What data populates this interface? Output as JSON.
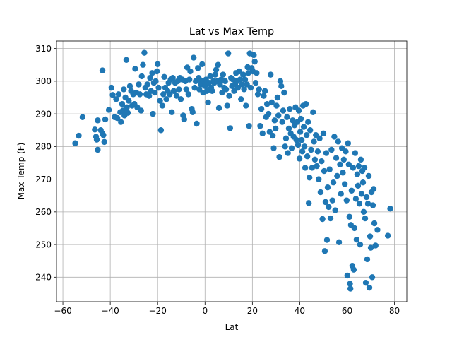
{
  "chart_data": {
    "type": "scatter",
    "title": "Lat vs Max Temp",
    "xlabel": "Lat",
    "ylabel": "Max Temp (F)",
    "xlim": [
      -62.7,
      85.2
    ],
    "ylim": [
      232.5,
      312.3
    ],
    "xticks": [
      -60,
      -40,
      -20,
      0,
      20,
      40,
      60,
      80
    ],
    "yticks": [
      240,
      250,
      260,
      270,
      280,
      290,
      300,
      310
    ],
    "grid": true,
    "marker_color": "#1f77b4",
    "points": [
      [
        -54.8,
        281
      ],
      [
        -53.3,
        283.3
      ],
      [
        -51.7,
        289
      ],
      [
        -46.5,
        285.2
      ],
      [
        -46,
        283
      ],
      [
        -45.7,
        282.1
      ],
      [
        -45.3,
        279
      ],
      [
        -45.3,
        288
      ],
      [
        -44,
        285
      ],
      [
        -43.3,
        284
      ],
      [
        -43.3,
        303.3
      ],
      [
        -42.9,
        283.5
      ],
      [
        -42.5,
        281.4
      ],
      [
        -42.1,
        288.3
      ],
      [
        -40.6,
        291.2
      ],
      [
        -39.5,
        298
      ],
      [
        -39,
        295.8
      ],
      [
        -38.2,
        289
      ],
      [
        -37.5,
        294.5
      ],
      [
        -37,
        288.7
      ],
      [
        -36.5,
        296
      ],
      [
        -35.8,
        290.5
      ],
      [
        -35.5,
        287.5
      ],
      [
        -35,
        293
      ],
      [
        -34.7,
        291
      ],
      [
        -34.3,
        297.5
      ],
      [
        -34,
        289.5
      ],
      [
        -33.6,
        295
      ],
      [
        -33.2,
        306.5
      ],
      [
        -33,
        292
      ],
      [
        -32.6,
        290.3
      ],
      [
        -32.2,
        294
      ],
      [
        -31.7,
        298.5
      ],
      [
        -31.2,
        297
      ],
      [
        -30.8,
        292.5
      ],
      [
        -30.3,
        296
      ],
      [
        -29.8,
        293
      ],
      [
        -29.5,
        303.8
      ],
      [
        -29,
        296.5
      ],
      [
        -28.6,
        292
      ],
      [
        -28,
        299
      ],
      [
        -27.5,
        296
      ],
      [
        -27,
        291
      ],
      [
        -26.7,
        301.5
      ],
      [
        -26.2,
        305
      ],
      [
        -25.6,
        308.7
      ],
      [
        -25.2,
        298
      ],
      [
        -24.8,
        296
      ],
      [
        -24.3,
        299
      ],
      [
        -23.6,
        295.5
      ],
      [
        -23.2,
        301
      ],
      [
        -22.8,
        297
      ],
      [
        -22.3,
        302.5
      ],
      [
        -22,
        290
      ],
      [
        -21.6,
        299.5
      ],
      [
        -21.2,
        296.5
      ],
      [
        -20.8,
        300
      ],
      [
        -20.3,
        303
      ],
      [
        -20,
        305.2
      ],
      [
        -19.6,
        298
      ],
      [
        -19,
        294
      ],
      [
        -18.6,
        285
      ],
      [
        -18,
        292.5
      ],
      [
        -17.6,
        296
      ],
      [
        -17.2,
        301.3
      ],
      [
        -16.8,
        298
      ],
      [
        -16.3,
        294.5
      ],
      [
        -15.8,
        297
      ],
      [
        -15.4,
        299.5
      ],
      [
        -14.9,
        296
      ],
      [
        -14.5,
        300.5
      ],
      [
        -14,
        290.5
      ],
      [
        -13.6,
        301
      ],
      [
        -13.2,
        297
      ],
      [
        -12.6,
        299.5
      ],
      [
        -12,
        295.5
      ],
      [
        -11.5,
        300
      ],
      [
        -11,
        297.5
      ],
      [
        -10.6,
        301
      ],
      [
        -10.2,
        294.5
      ],
      [
        -9.6,
        300.5
      ],
      [
        -9.2,
        289.5
      ],
      [
        -8.8,
        288.3
      ],
      [
        -8.3,
        300
      ],
      [
        -7.9,
        297.5
      ],
      [
        -7.5,
        304.2
      ],
      [
        -7,
        296
      ],
      [
        -6.6,
        300.5
      ],
      [
        -6.2,
        303
      ],
      [
        -5.6,
        291.5
      ],
      [
        -5.2,
        290.5
      ],
      [
        -4.8,
        307.2
      ],
      [
        -4.4,
        298
      ],
      [
        -3.9,
        300
      ],
      [
        -3.5,
        287
      ],
      [
        -3,
        304
      ],
      [
        -2.7,
        301
      ],
      [
        -2.4,
        297.5
      ],
      [
        -2,
        300.3
      ],
      [
        -1.6,
        299
      ],
      [
        -1.2,
        305.2
      ],
      [
        -0.8,
        296.5
      ],
      [
        -0.4,
        300
      ],
      [
        0,
        298.5
      ],
      [
        0.4,
        300.5
      ],
      [
        0.8,
        297
      ],
      [
        1.3,
        293.5
      ],
      [
        1.7,
        299.5
      ],
      [
        2.2,
        301.5
      ],
      [
        2.6,
        298
      ],
      [
        3,
        297
      ],
      [
        3.5,
        300
      ],
      [
        3.9,
        299.5
      ],
      [
        4.3,
        302
      ],
      [
        4.7,
        303.5
      ],
      [
        5.1,
        300
      ],
      [
        5.5,
        305
      ],
      [
        5.9,
        291.8
      ],
      [
        6.3,
        299
      ],
      [
        6.8,
        300.5
      ],
      [
        7.2,
        296.5
      ],
      [
        7.6,
        302
      ],
      [
        8.1,
        298
      ],
      [
        8.5,
        300
      ],
      [
        8.9,
        297.5
      ],
      [
        9.4,
        292.5
      ],
      [
        9.8,
        308.5
      ],
      [
        10.2,
        295.5
      ],
      [
        10.6,
        285.6
      ],
      [
        11,
        301
      ],
      [
        11.4,
        298.5
      ],
      [
        11.8,
        300.5
      ],
      [
        12.3,
        297
      ],
      [
        12.7,
        299
      ],
      [
        13.1,
        302.5
      ],
      [
        13.5,
        300
      ],
      [
        13.9,
        298
      ],
      [
        14.4,
        303
      ],
      [
        14.8,
        300.5
      ],
      [
        15.2,
        294.5
      ],
      [
        15.6,
        299
      ],
      [
        16.1,
        302
      ],
      [
        16.5,
        297.5
      ],
      [
        16.9,
        300.5
      ],
      [
        17.3,
        292.5
      ],
      [
        17.7,
        299
      ],
      [
        18,
        304.3
      ],
      [
        18.3,
        302.5
      ],
      [
        18.6,
        286.3
      ],
      [
        18.9,
        308.5
      ],
      [
        19.3,
        298
      ],
      [
        19.7,
        304
      ],
      [
        20.2,
        303
      ],
      [
        20.6,
        308
      ],
      [
        21,
        306
      ],
      [
        21.4,
        299.5
      ],
      [
        21.8,
        302.5
      ],
      [
        22.3,
        296
      ],
      [
        22.8,
        297.5
      ],
      [
        23.3,
        286.3
      ],
      [
        23.8,
        291.5
      ],
      [
        24.3,
        284
      ],
      [
        24.8,
        295.5
      ],
      [
        25.3,
        297
      ],
      [
        25.8,
        289
      ],
      [
        26.2,
        293
      ],
      [
        26.8,
        290
      ],
      [
        27.3,
        284.5
      ],
      [
        27.7,
        302
      ],
      [
        28.2,
        293.5
      ],
      [
        28.6,
        283.3
      ],
      [
        29,
        279.5
      ],
      [
        29.4,
        288
      ],
      [
        29.8,
        285.5
      ],
      [
        30.2,
        292.5
      ],
      [
        30.6,
        295
      ],
      [
        31,
        289.5
      ],
      [
        31.4,
        276.8
      ],
      [
        31.8,
        300
      ],
      [
        32.2,
        298.5
      ],
      [
        32.6,
        287.5
      ],
      [
        33,
        291
      ],
      [
        33.4,
        296.5
      ],
      [
        33.8,
        280
      ],
      [
        34.2,
        282.5
      ],
      [
        34.6,
        289
      ],
      [
        35,
        278
      ],
      [
        35.4,
        285.5
      ],
      [
        35.8,
        291.5
      ],
      [
        36.2,
        284
      ],
      [
        36.6,
        279.5
      ],
      [
        37,
        288
      ],
      [
        37.4,
        283
      ],
      [
        37.8,
        286.5
      ],
      [
        38.2,
        292
      ],
      [
        38.6,
        282
      ],
      [
        39,
        287.5
      ],
      [
        39.3,
        280.5
      ],
      [
        39.6,
        291
      ],
      [
        39.9,
        276.3
      ],
      [
        40.2,
        284.5
      ],
      [
        40.5,
        288.5
      ],
      [
        40.8,
        282
      ],
      [
        41.1,
        278.5
      ],
      [
        41.4,
        292.5
      ],
      [
        41.7,
        286
      ],
      [
        42,
        280
      ],
      [
        42.3,
        273.5
      ],
      [
        42.6,
        293
      ],
      [
        42.9,
        283.5
      ],
      [
        43.2,
        277
      ],
      [
        43.5,
        287.5
      ],
      [
        43.8,
        262.7
      ],
      [
        44.1,
        270.5
      ],
      [
        44.4,
        285
      ],
      [
        44.8,
        279
      ],
      [
        45.2,
        273.5
      ],
      [
        45.6,
        290.5
      ],
      [
        46,
        281.5
      ],
      [
        46.4,
        276
      ],
      [
        46.8,
        283.5
      ],
      [
        47.2,
        274
      ],
      [
        47.6,
        278.5
      ],
      [
        48,
        270
      ],
      [
        48.4,
        282.5
      ],
      [
        48.8,
        266
      ],
      [
        49.2,
        275.5
      ],
      [
        49.6,
        257.8
      ],
      [
        50,
        284
      ],
      [
        50.3,
        272.5
      ],
      [
        50.6,
        248
      ],
      [
        50.9,
        263
      ],
      [
        51.2,
        278
      ],
      [
        51.5,
        251.4
      ],
      [
        51.8,
        267.5
      ],
      [
        52.2,
        261.5
      ],
      [
        52.6,
        273
      ],
      [
        53,
        258
      ],
      [
        53.4,
        279
      ],
      [
        53.8,
        263.5
      ],
      [
        54.2,
        269
      ],
      [
        54.6,
        283
      ],
      [
        55,
        260.5
      ],
      [
        55.4,
        276.5
      ],
      [
        55.8,
        271
      ],
      [
        56.2,
        281.5
      ],
      [
        56.6,
        250.7
      ],
      [
        57,
        274.5
      ],
      [
        57.4,
        265.5
      ],
      [
        57.8,
        279.5
      ],
      [
        58.2,
        272
      ],
      [
        58.6,
        276
      ],
      [
        59,
        268.5
      ],
      [
        59.4,
        278.5
      ],
      [
        59.8,
        263.5
      ],
      [
        60.1,
        240.5
      ],
      [
        60.4,
        281
      ],
      [
        60.7,
        274.5
      ],
      [
        61,
        258.5
      ],
      [
        61.2,
        238
      ],
      [
        61.4,
        236.5
      ],
      [
        61.6,
        256
      ],
      [
        61.9,
        266.5
      ],
      [
        62.2,
        243.5
      ],
      [
        62.5,
        273.5
      ],
      [
        62.8,
        242.3
      ],
      [
        63.1,
        255
      ],
      [
        63.4,
        278
      ],
      [
        63.7,
        264
      ],
      [
        64,
        251.5
      ],
      [
        64.3,
        271.5
      ],
      [
        64.6,
        268
      ],
      [
        64.9,
        274
      ],
      [
        65.2,
        262.5
      ],
      [
        65.5,
        250
      ],
      [
        65.8,
        276
      ],
      [
        66.1,
        265.5
      ],
      [
        66.4,
        272.5
      ],
      [
        66.7,
        269
      ],
      [
        67,
        260
      ],
      [
        67.3,
        273.5
      ],
      [
        67.6,
        258
      ],
      [
        67.9,
        238.3
      ],
      [
        68.2,
        264.5
      ],
      [
        68.5,
        245.5
      ],
      [
        68.8,
        262.5
      ],
      [
        69.1,
        271
      ],
      [
        69.4,
        236.8
      ],
      [
        69.7,
        252.5
      ],
      [
        70,
        249
      ],
      [
        70.3,
        266
      ],
      [
        70.6,
        240
      ],
      [
        70.9,
        262
      ],
      [
        71.2,
        267
      ],
      [
        71.5,
        256.5
      ],
      [
        72,
        249.7
      ],
      [
        72.8,
        254.5
      ],
      [
        77.2,
        252.7
      ],
      [
        78.2,
        261
      ]
    ]
  }
}
